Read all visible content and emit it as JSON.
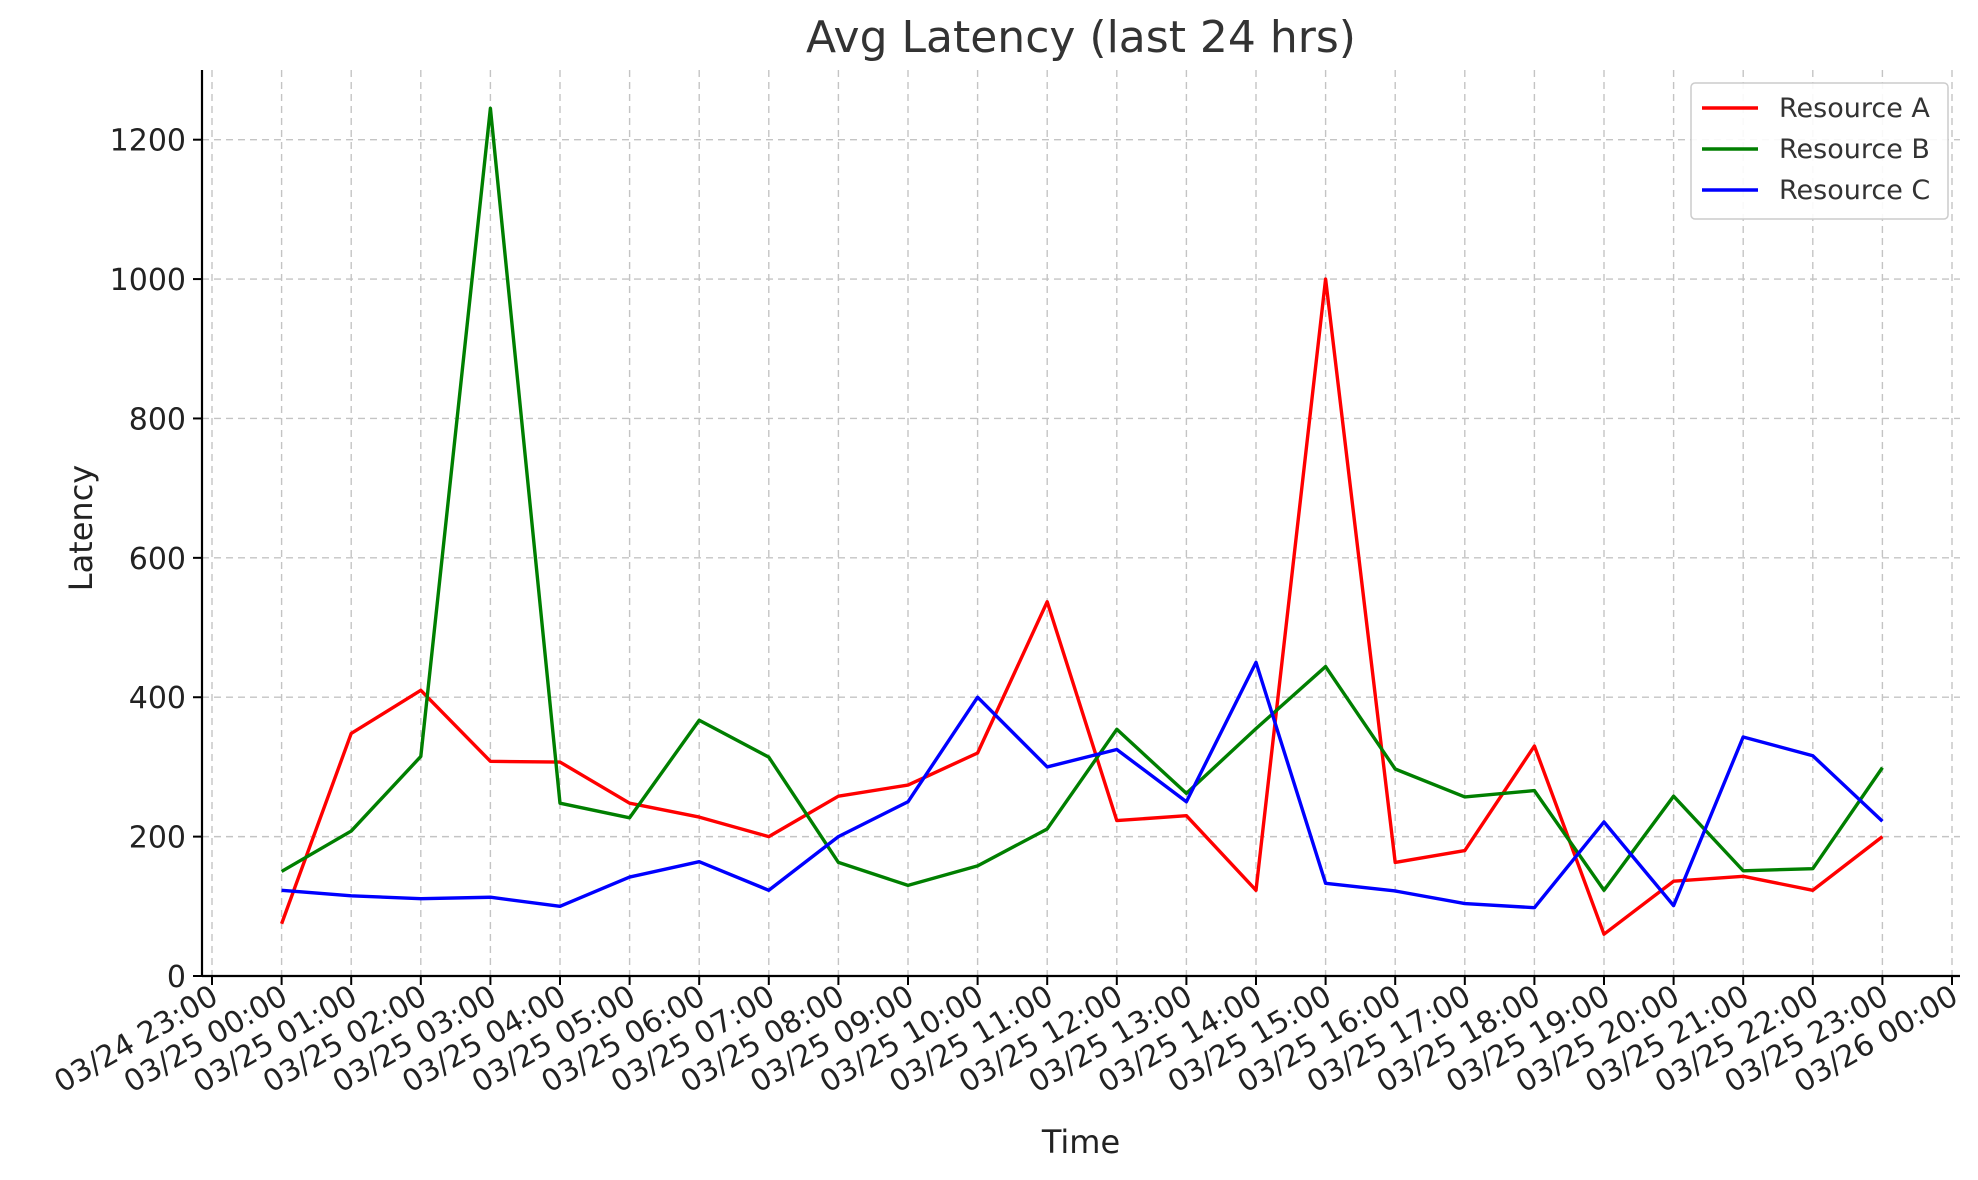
{
  "chart_data": {
    "type": "line",
    "title": "Avg Latency (last 24 hrs)",
    "xlabel": "Time",
    "ylabel": "Latency",
    "ylim": [
      0,
      1300
    ],
    "yticks": [
      0,
      200,
      400,
      600,
      800,
      1000,
      1200
    ],
    "x_ticks": [
      "03/24 23:00",
      "03/25 00:00",
      "03/25 01:00",
      "03/25 02:00",
      "03/25 03:00",
      "03/25 04:00",
      "03/25 05:00",
      "03/25 06:00",
      "03/25 07:00",
      "03/25 08:00",
      "03/25 09:00",
      "03/25 10:00",
      "03/25 11:00",
      "03/25 12:00",
      "03/25 13:00",
      "03/25 14:00",
      "03/25 15:00",
      "03/25 16:00",
      "03/25 17:00",
      "03/25 18:00",
      "03/25 19:00",
      "03/25 20:00",
      "03/25 21:00",
      "03/25 22:00",
      "03/25 23:00",
      "03/26 00:00"
    ],
    "x": [
      "03/25 00:00",
      "03/25 01:00",
      "03/25 02:00",
      "03/25 03:00",
      "03/25 04:00",
      "03/25 05:00",
      "03/25 06:00",
      "03/25 07:00",
      "03/25 08:00",
      "03/25 09:00",
      "03/25 10:00",
      "03/25 11:00",
      "03/25 12:00",
      "03/25 13:00",
      "03/25 14:00",
      "03/25 15:00",
      "03/25 16:00",
      "03/25 17:00",
      "03/25 18:00",
      "03/25 19:00",
      "03/25 20:00",
      "03/25 21:00",
      "03/25 22:00",
      "03/25 23:00"
    ],
    "grid": true,
    "legend_position": "top-right",
    "series": [
      {
        "name": "Resource A",
        "color": "#ff0000",
        "values": [
          75,
          348,
          410,
          308,
          307,
          248,
          228,
          200,
          258,
          274,
          320,
          537,
          223,
          230,
          123,
          1000,
          163,
          180,
          330,
          60,
          136,
          143,
          123,
          200
        ]
      },
      {
        "name": "Resource B",
        "color": "#007f00",
        "values": [
          150,
          208,
          315,
          1245,
          248,
          227,
          367,
          314,
          163,
          130,
          158,
          211,
          354,
          262,
          355,
          444,
          297,
          257,
          266,
          123,
          258,
          151,
          154,
          299
        ]
      },
      {
        "name": "Resource C",
        "color": "#0000ff",
        "values": [
          123,
          115,
          111,
          113,
          100,
          142,
          164,
          123,
          200,
          250,
          400,
          300,
          325,
          250,
          450,
          133,
          122,
          104,
          98,
          221,
          101,
          343,
          316,
          222
        ]
      }
    ]
  }
}
